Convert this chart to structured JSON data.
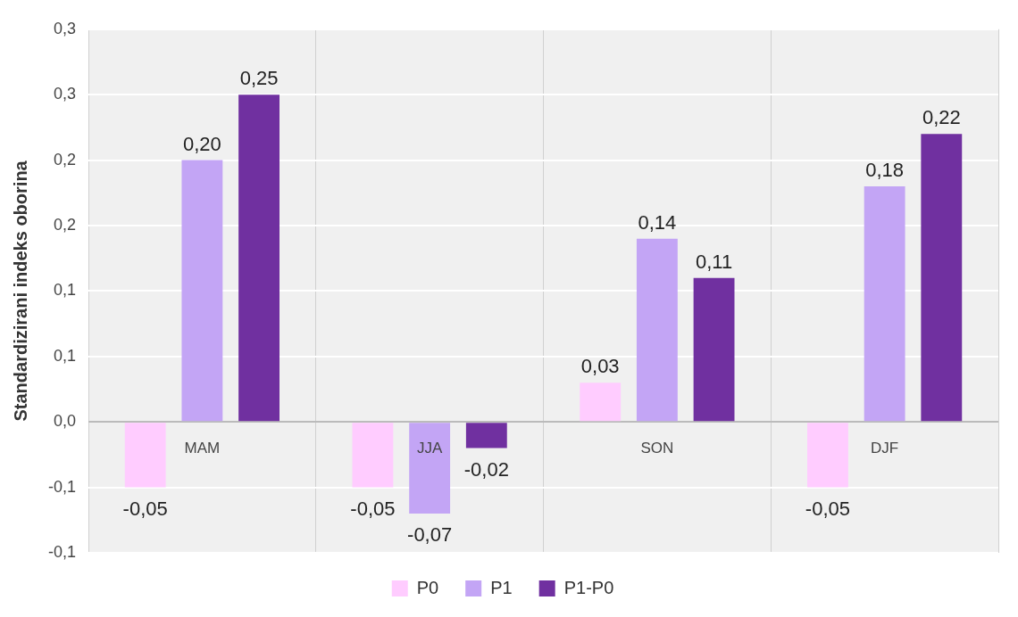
{
  "chart_data": {
    "type": "bar",
    "ylabel": "Standardizirani indeks oborina",
    "categories": [
      "MAM",
      "JJA",
      "SON",
      "DJF"
    ],
    "series": [
      {
        "name": "P0",
        "color": "#ffccff",
        "values": [
          -0.05,
          -0.05,
          0.03,
          -0.05
        ],
        "value_labels": [
          "-0,05",
          "-0,05",
          "0,03",
          "-0,05"
        ]
      },
      {
        "name": "P1",
        "color": "#c3a5f5",
        "values": [
          0.2,
          -0.07,
          0.14,
          0.18
        ],
        "value_labels": [
          "0,20",
          "-0,07",
          "0,14",
          "0,18"
        ]
      },
      {
        "name": "P1-P0",
        "color": "#7030a0",
        "values": [
          0.25,
          -0.02,
          0.11,
          0.22
        ],
        "value_labels": [
          "0,25",
          "-0,02",
          "0,11",
          "0,22"
        ]
      }
    ],
    "ylim": [
      -0.1,
      0.3
    ],
    "yticks": [
      {
        "value": -0.1,
        "label": "-0,1"
      },
      {
        "value": -0.05,
        "label": "-0,1"
      },
      {
        "value": 0,
        "label": "0,0"
      },
      {
        "value": 0.05,
        "label": "0,1"
      },
      {
        "value": 0.1,
        "label": "0,1"
      },
      {
        "value": 0.15,
        "label": "0,2"
      },
      {
        "value": 0.2,
        "label": "0,2"
      },
      {
        "value": 0.25,
        "label": "0,3"
      },
      {
        "value": 0.3,
        "label": "0,3"
      }
    ],
    "grid": true,
    "legend": "bottom"
  }
}
